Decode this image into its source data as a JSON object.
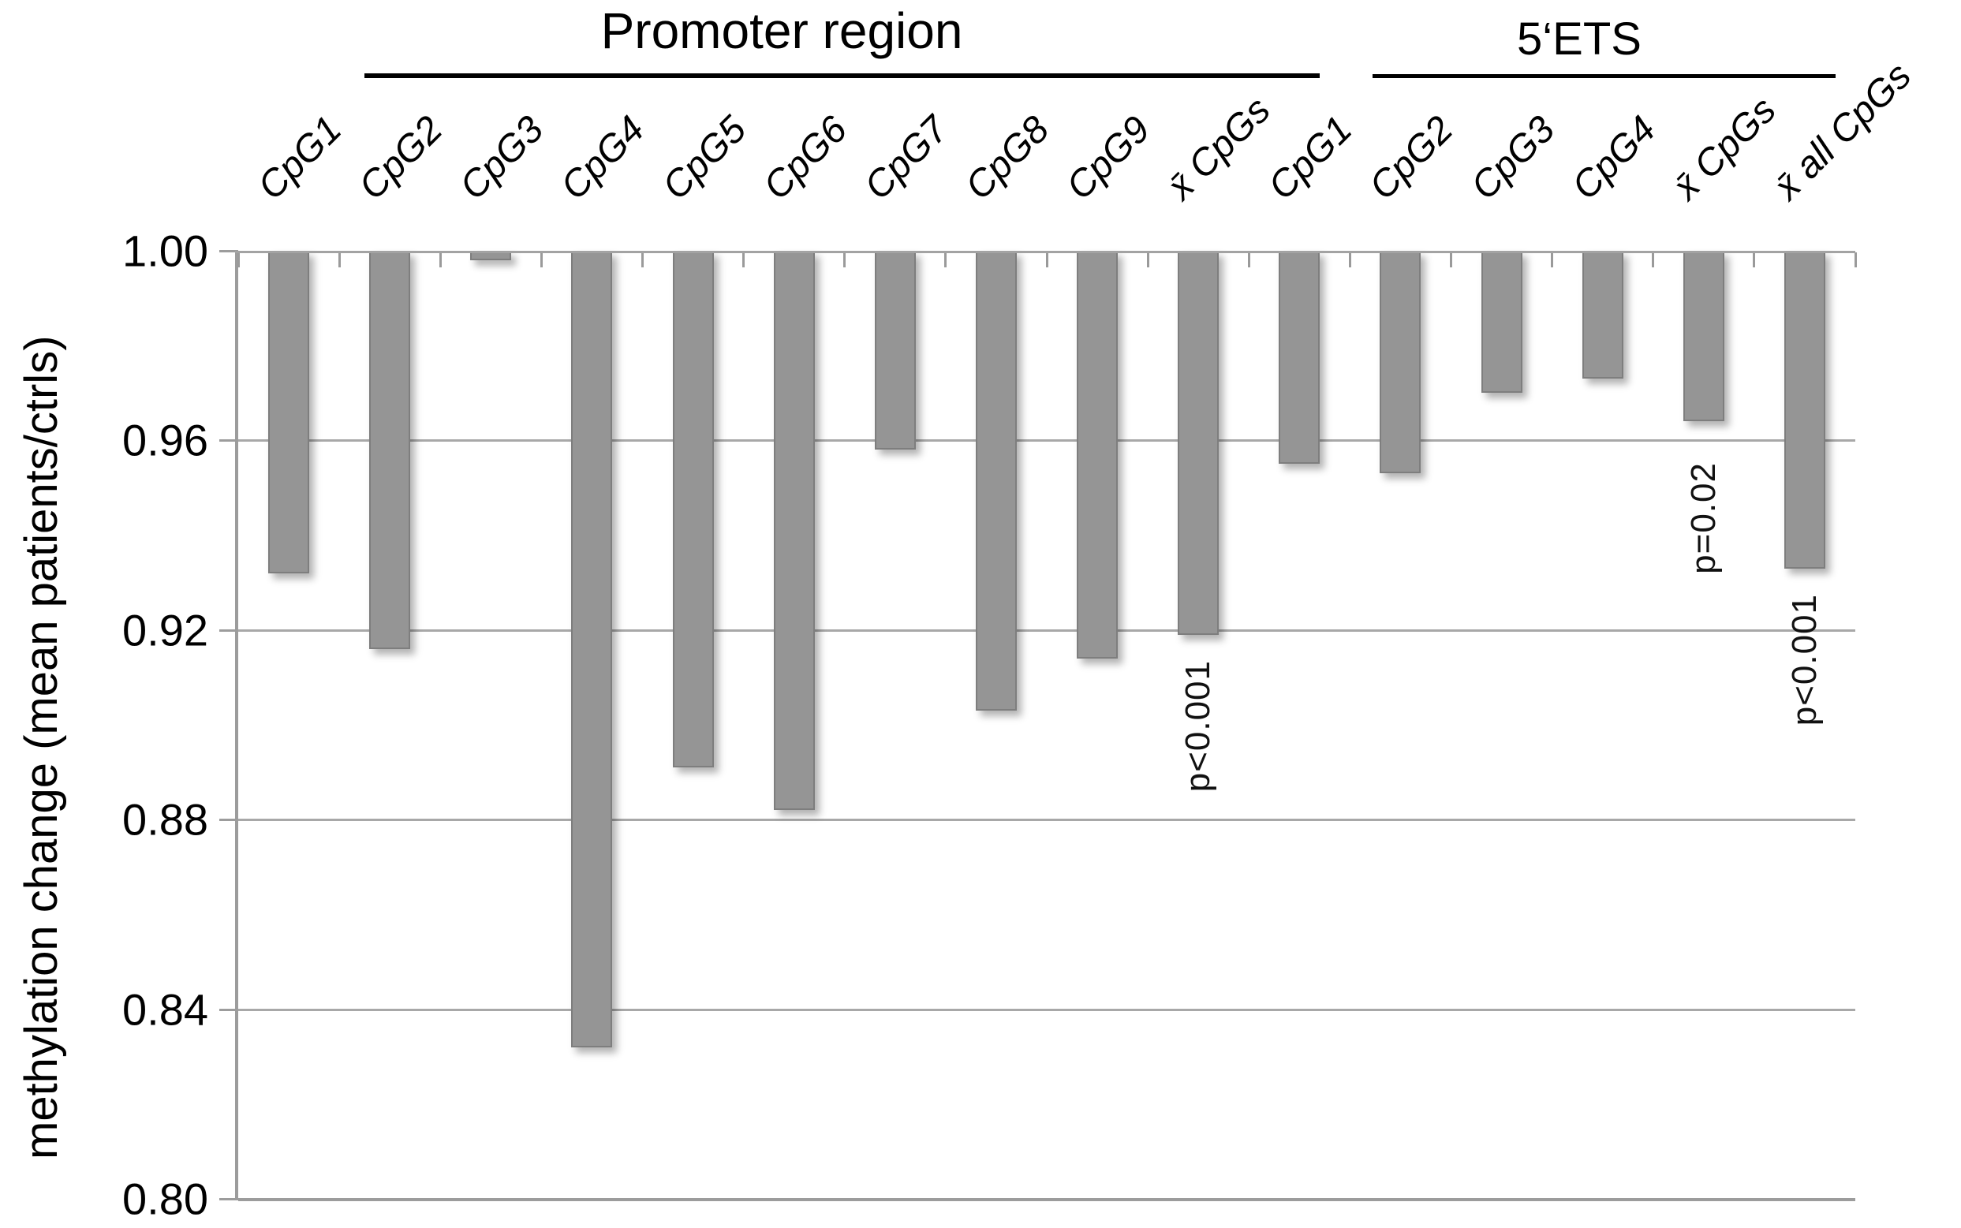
{
  "chart_data": {
    "type": "bar",
    "title": "",
    "ylabel": "methylation change (mean patients/ctrls)",
    "xlabel": "",
    "ylim": [
      0.8,
      1.0
    ],
    "ytick_labels": [
      "1.00",
      "0.96",
      "0.92",
      "0.88",
      "0.84",
      "0.80"
    ],
    "ytick_values": [
      1.0,
      0.96,
      0.92,
      0.88,
      0.84,
      0.8
    ],
    "grid": true,
    "legend": "none",
    "bar_color": "#959595",
    "bar_border_color": "#7e7e7e",
    "gridline_color": "#a8a8a8",
    "group_headers": [
      {
        "label": "Promoter region",
        "first_bar": 0,
        "last_bar": 9
      },
      {
        "label": "5‘ETS",
        "first_bar": 10,
        "last_bar": 14
      }
    ],
    "categories": [
      "CpG1",
      "CpG2",
      "CpG3",
      "CpG4",
      "CpG5",
      "CpG6",
      "CpG7",
      "CpG8",
      "CpG9",
      "x̄ CpGs",
      "CpG1",
      "CpG2",
      "CpG3",
      "CpG4",
      "x̄ CpGs",
      "x̄ all CpGs"
    ],
    "values": [
      0.932,
      0.916,
      0.998,
      0.832,
      0.891,
      0.882,
      0.958,
      0.903,
      0.914,
      0.919,
      0.955,
      0.953,
      0.97,
      0.973,
      0.964,
      0.933
    ],
    "annotations": [
      {
        "bar_index": 9,
        "text": "p<0.001"
      },
      {
        "bar_index": 14,
        "text": "p=0.02"
      },
      {
        "bar_index": 15,
        "text": "p<0.001"
      }
    ]
  }
}
